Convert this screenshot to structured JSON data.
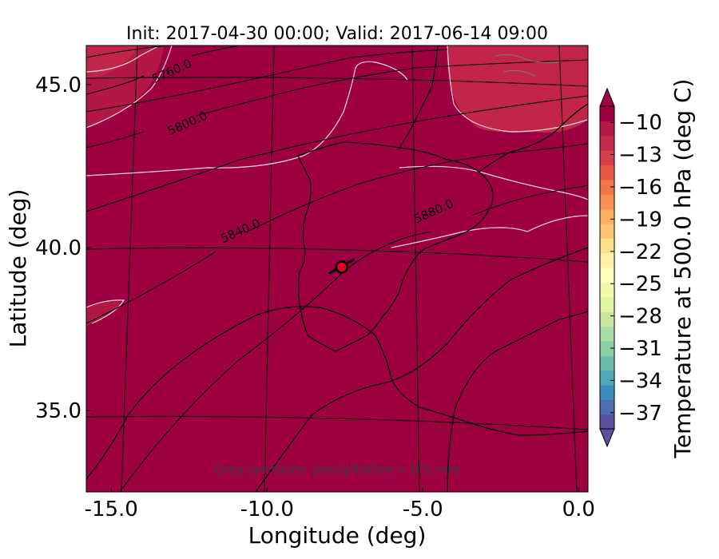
{
  "chart_data": {
    "type": "heatmap",
    "title": "Init: 2017-04-30 00:00; Valid: 2017-06-14 09:00",
    "xlabel": "Longitude (deg)",
    "ylabel": "Latitude (deg)",
    "xlim": [
      -15.8,
      0.3
    ],
    "ylim": [
      32.5,
      46.2
    ],
    "x_ticks": [
      -15.0,
      -10.0,
      -5.0,
      0.0
    ],
    "x_tick_labels": [
      "-15.0",
      "-10.0",
      "-5.0",
      "0.0"
    ],
    "y_ticks": [
      35.0,
      40.0,
      45.0
    ],
    "y_tick_labels": [
      "35.0",
      "40.0",
      "45.0"
    ],
    "background_field_color": "#9e0142",
    "height_contours": [
      {
        "level": 5760.0,
        "label": "5760.0",
        "label_at": [
          -13.0,
          45.3
        ]
      },
      {
        "level": 5800.0,
        "label": "5800.0",
        "label_at": [
          -12.5,
          43.7
        ]
      },
      {
        "level": 5840.0,
        "label": "5840.0",
        "label_at": [
          -10.8,
          40.4
        ]
      },
      {
        "level": 5880.0,
        "label": "5880.0",
        "label_at": [
          -4.6,
          41.0
        ]
      }
    ],
    "marker": {
      "lon": -7.6,
      "lat": 39.4,
      "color": "#e4002b"
    },
    "annotation": "Grey contours: precipitation > 0.5 mm",
    "colorbar": {
      "label": "Temperature at 500.0 hPa (deg C)",
      "min": -38.5,
      "max": -8.5,
      "tick_values": [
        -10,
        -13,
        -16,
        -19,
        -22,
        -25,
        -28,
        -31,
        -34,
        -37
      ],
      "tick_labels": [
        "−10",
        "−13",
        "−16",
        "−19",
        "−22",
        "−25",
        "−28",
        "−31",
        "−34",
        "−37"
      ],
      "extend": "both",
      "colormap": "Spectral_r",
      "colors": [
        "#5e4fa2",
        "#4c6db0",
        "#3f8cbc",
        "#4fa7ba",
        "#6bbda9",
        "#8cd0a4",
        "#aadca4",
        "#c6e89f",
        "#e0f3a1",
        "#f2faac",
        "#fffebe",
        "#fff0a6",
        "#fee08b",
        "#fdc675",
        "#fdad60",
        "#f99153",
        "#f57446",
        "#e75848",
        "#d7404e",
        "#c42a4b",
        "#b41947",
        "#9e0142"
      ]
    }
  }
}
